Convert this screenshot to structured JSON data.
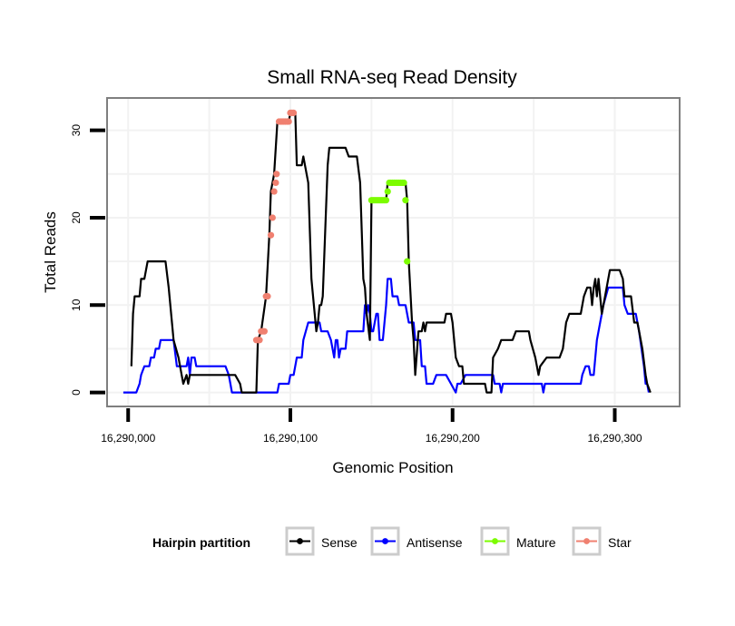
{
  "chart_data": {
    "type": "line",
    "title": "Small RNA-seq Read Density",
    "xlabel": "Genomic Position",
    "ylabel": "Total Reads",
    "x_base": 16290000,
    "xlim": [
      16289987,
      16290340
    ],
    "ylim": [
      -1.6,
      33.7
    ],
    "x_ticks": [
      16290000,
      16290100,
      16290200,
      16290300
    ],
    "x_tick_labels": [
      "16,290,000",
      "16,290,100",
      "16,290,200",
      "16,290,300"
    ],
    "y_ticks": [
      0,
      10,
      20,
      30
    ],
    "y_tick_labels": [
      "0",
      "10",
      "20",
      "30"
    ],
    "grid": true,
    "legend": {
      "title": "Hairpin partition",
      "position": "bottom",
      "entries": [
        {
          "name": "Sense",
          "color": "#000000"
        },
        {
          "name": "Antisense",
          "color": "#0000ff"
        },
        {
          "name": "Mature",
          "color": "#7cfc00"
        },
        {
          "name": "Star",
          "color": "#f08070"
        }
      ]
    },
    "series": [
      {
        "name": "Sense",
        "color": "#000000",
        "style": "line",
        "points": [
          [
            2,
            3
          ],
          [
            3,
            9
          ],
          [
            4,
            11
          ],
          [
            7,
            11
          ],
          [
            8,
            13
          ],
          [
            10,
            13
          ],
          [
            12,
            15
          ],
          [
            23,
            15
          ],
          [
            25,
            12
          ],
          [
            27,
            8
          ],
          [
            28,
            6
          ],
          [
            31,
            4
          ],
          [
            33,
            2
          ],
          [
            34,
            1
          ],
          [
            36,
            2
          ],
          [
            37,
            1
          ],
          [
            38,
            2
          ],
          [
            66,
            2
          ],
          [
            69,
            1
          ],
          [
            70,
            0
          ],
          [
            79,
            0
          ],
          [
            80,
            6
          ],
          [
            82,
            7
          ],
          [
            85,
            11
          ],
          [
            87,
            18
          ],
          [
            88,
            23
          ],
          [
            89,
            24
          ],
          [
            90,
            25
          ],
          [
            92,
            31
          ],
          [
            99,
            31
          ],
          [
            100,
            32
          ],
          [
            103,
            32
          ],
          [
            104,
            26
          ],
          [
            107,
            26
          ],
          [
            108,
            27
          ],
          [
            109,
            26
          ],
          [
            111,
            24
          ],
          [
            113,
            13
          ],
          [
            115,
            9
          ],
          [
            116,
            7
          ],
          [
            117,
            8
          ],
          [
            118,
            10
          ],
          [
            119,
            10
          ],
          [
            120,
            11
          ],
          [
            121,
            16
          ],
          [
            123,
            26
          ],
          [
            124,
            28
          ],
          [
            134,
            28
          ],
          [
            136,
            27
          ],
          [
            141,
            27
          ],
          [
            143,
            24
          ],
          [
            145,
            13
          ],
          [
            146,
            12
          ],
          [
            147,
            9
          ],
          [
            149,
            6
          ],
          [
            150,
            22
          ],
          [
            159,
            22
          ],
          [
            160,
            24
          ],
          [
            171,
            24
          ],
          [
            172,
            22
          ],
          [
            173,
            15
          ],
          [
            175,
            8
          ],
          [
            176,
            6
          ],
          [
            177,
            2
          ],
          [
            179,
            7
          ],
          [
            181,
            7
          ],
          [
            182,
            8
          ],
          [
            183,
            7
          ],
          [
            184,
            8
          ],
          [
            195,
            8
          ],
          [
            196,
            9
          ],
          [
            199,
            9
          ],
          [
            200,
            8
          ],
          [
            202,
            4
          ],
          [
            204,
            3
          ],
          [
            206,
            3
          ],
          [
            207,
            1
          ],
          [
            210,
            1
          ],
          [
            220,
            1
          ],
          [
            221,
            0
          ],
          [
            224,
            0
          ],
          [
            225,
            4
          ],
          [
            228,
            5
          ],
          [
            230,
            6
          ],
          [
            237,
            6
          ],
          [
            239,
            7
          ],
          [
            247,
            7
          ],
          [
            248,
            6
          ],
          [
            251,
            4
          ],
          [
            253,
            2
          ],
          [
            254,
            3
          ],
          [
            258,
            4
          ],
          [
            266,
            4
          ],
          [
            268,
            5
          ],
          [
            270,
            8
          ],
          [
            272,
            9
          ],
          [
            279,
            9
          ],
          [
            281,
            11
          ],
          [
            283,
            12
          ],
          [
            285,
            12
          ],
          [
            286,
            10
          ],
          [
            287,
            12
          ],
          [
            288,
            13
          ],
          [
            289,
            11
          ],
          [
            290,
            13
          ],
          [
            292,
            9
          ],
          [
            294,
            11
          ],
          [
            297,
            14
          ],
          [
            303,
            14
          ],
          [
            305,
            13
          ],
          [
            306,
            11
          ],
          [
            310,
            11
          ],
          [
            312,
            8
          ],
          [
            314,
            8
          ],
          [
            317,
            5
          ],
          [
            319,
            2
          ],
          [
            320,
            1
          ],
          [
            322,
            0
          ]
        ]
      },
      {
        "name": "Antisense",
        "color": "#0000ff",
        "style": "line",
        "points": [
          [
            -3,
            0
          ],
          [
            5,
            0
          ],
          [
            7,
            1
          ],
          [
            8,
            2
          ],
          [
            10,
            3
          ],
          [
            13,
            3
          ],
          [
            14,
            4
          ],
          [
            16,
            4
          ],
          [
            17,
            5
          ],
          [
            19,
            5
          ],
          [
            20,
            6
          ],
          [
            28,
            6
          ],
          [
            30,
            3
          ],
          [
            36,
            3
          ],
          [
            37,
            4
          ],
          [
            38,
            2
          ],
          [
            39,
            4
          ],
          [
            41,
            4
          ],
          [
            42,
            3
          ],
          [
            60,
            3
          ],
          [
            62,
            2
          ],
          [
            63,
            1
          ],
          [
            64,
            0
          ],
          [
            91,
            0
          ],
          [
            92,
            0
          ],
          [
            93,
            1
          ],
          [
            99,
            1
          ],
          [
            100,
            2
          ],
          [
            102,
            2
          ],
          [
            104,
            4
          ],
          [
            107,
            4
          ],
          [
            108,
            6
          ],
          [
            111,
            8
          ],
          [
            118,
            8
          ],
          [
            119,
            7
          ],
          [
            123,
            7
          ],
          [
            125,
            6
          ],
          [
            127,
            4
          ],
          [
            128,
            6
          ],
          [
            129,
            6
          ],
          [
            130,
            4
          ],
          [
            131,
            5
          ],
          [
            134,
            5
          ],
          [
            135,
            7
          ],
          [
            145,
            7
          ],
          [
            146,
            10
          ],
          [
            147,
            9
          ],
          [
            148,
            10
          ],
          [
            149,
            9
          ],
          [
            150,
            7
          ],
          [
            151,
            7
          ],
          [
            153,
            9
          ],
          [
            154,
            9
          ],
          [
            155,
            6
          ],
          [
            157,
            6
          ],
          [
            159,
            10
          ],
          [
            160,
            13
          ],
          [
            162,
            13
          ],
          [
            163,
            11
          ],
          [
            166,
            11
          ],
          [
            167,
            10
          ],
          [
            171,
            10
          ],
          [
            173,
            8
          ],
          [
            176,
            8
          ],
          [
            177,
            6
          ],
          [
            180,
            6
          ],
          [
            181,
            3
          ],
          [
            183,
            3
          ],
          [
            184,
            1
          ],
          [
            188,
            1
          ],
          [
            190,
            2
          ],
          [
            195,
            2
          ],
          [
            196,
            2
          ],
          [
            199,
            1
          ],
          [
            202,
            0
          ],
          [
            203,
            1
          ],
          [
            205,
            1
          ],
          [
            208,
            2
          ],
          [
            225,
            2
          ],
          [
            226,
            1
          ],
          [
            229,
            1
          ],
          [
            230,
            0
          ],
          [
            231,
            1
          ],
          [
            255,
            1
          ],
          [
            256,
            0
          ],
          [
            257,
            1
          ],
          [
            279,
            1
          ],
          [
            280,
            2
          ],
          [
            282,
            3
          ],
          [
            284,
            3
          ],
          [
            285,
            2
          ],
          [
            287,
            2
          ],
          [
            289,
            6
          ],
          [
            291,
            8
          ],
          [
            293,
            10
          ],
          [
            296,
            12
          ],
          [
            305,
            12
          ],
          [
            306,
            10
          ],
          [
            308,
            9
          ],
          [
            313,
            9
          ],
          [
            314,
            8
          ],
          [
            315,
            7
          ],
          [
            318,
            3
          ],
          [
            319,
            1
          ],
          [
            320,
            1
          ],
          [
            321,
            0
          ]
        ]
      },
      {
        "name": "Mature",
        "color": "#7cfc00",
        "style": "points",
        "points": [
          [
            150,
            22
          ],
          [
            151,
            22
          ],
          [
            152,
            22
          ],
          [
            153,
            22
          ],
          [
            154,
            22
          ],
          [
            155,
            22
          ],
          [
            156,
            22
          ],
          [
            157,
            22
          ],
          [
            158,
            22
          ],
          [
            159,
            22
          ],
          [
            160,
            23
          ],
          [
            161,
            24
          ],
          [
            162,
            24
          ],
          [
            163,
            24
          ],
          [
            164,
            24
          ],
          [
            165,
            24
          ],
          [
            166,
            24
          ],
          [
            167,
            24
          ],
          [
            168,
            24
          ],
          [
            169,
            24
          ],
          [
            170,
            24
          ],
          [
            171,
            22
          ],
          [
            172,
            15
          ]
        ]
      },
      {
        "name": "Star",
        "color": "#f08070",
        "style": "points",
        "points": [
          [
            79,
            6
          ],
          [
            80,
            6
          ],
          [
            81,
            6
          ],
          [
            82,
            7
          ],
          [
            83,
            7
          ],
          [
            84,
            7
          ],
          [
            85,
            11
          ],
          [
            86,
            11
          ],
          [
            88,
            18
          ],
          [
            89,
            20
          ],
          [
            90,
            23
          ],
          [
            91,
            24
          ],
          [
            91.5,
            25
          ],
          [
            93,
            31
          ],
          [
            94,
            31
          ],
          [
            95,
            31
          ],
          [
            96,
            31
          ],
          [
            97,
            31
          ],
          [
            98,
            31
          ],
          [
            99,
            31
          ],
          [
            100,
            32
          ],
          [
            101,
            32
          ],
          [
            102,
            32
          ]
        ]
      }
    ]
  }
}
